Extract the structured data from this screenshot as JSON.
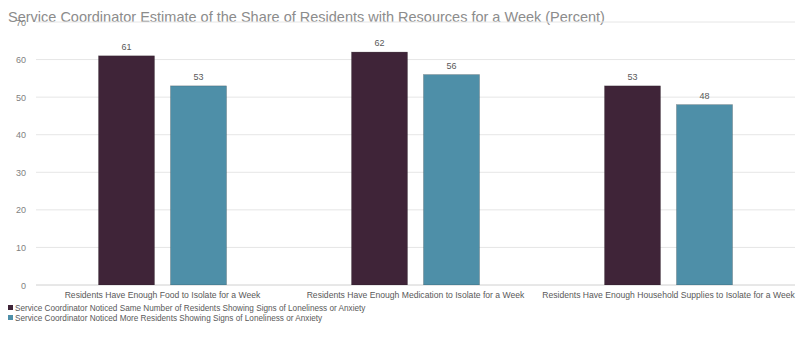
{
  "chart_data": {
    "type": "bar",
    "title": "Service Coordinator Estimate of the Share of Residents with Resources for a Week (Percent)",
    "categories": [
      "Residents Have Enough Food to Isolate for a Week",
      "Residents Have Enough Medication to Isolate for a Week",
      "Residents Have Enough Household Supplies to Isolate for a Week"
    ],
    "series": [
      {
        "name": "Service Coordinator Noticed Same Number of Residents Showing Signs of Loneliness or Anxiety",
        "color": "#3f2438",
        "values": [
          61,
          62,
          53
        ]
      },
      {
        "name": "Service Coordinator Noticed More Residents Showing Signs of Loneliness or Anxiety",
        "color": "#4e8fa8",
        "values": [
          53,
          56,
          48
        ]
      }
    ],
    "ylim": [
      0,
      70
    ],
    "yticks": [
      0,
      10,
      20,
      30,
      40,
      50,
      60,
      70
    ],
    "grid": true,
    "data_labels": true,
    "legend": "bottom"
  }
}
